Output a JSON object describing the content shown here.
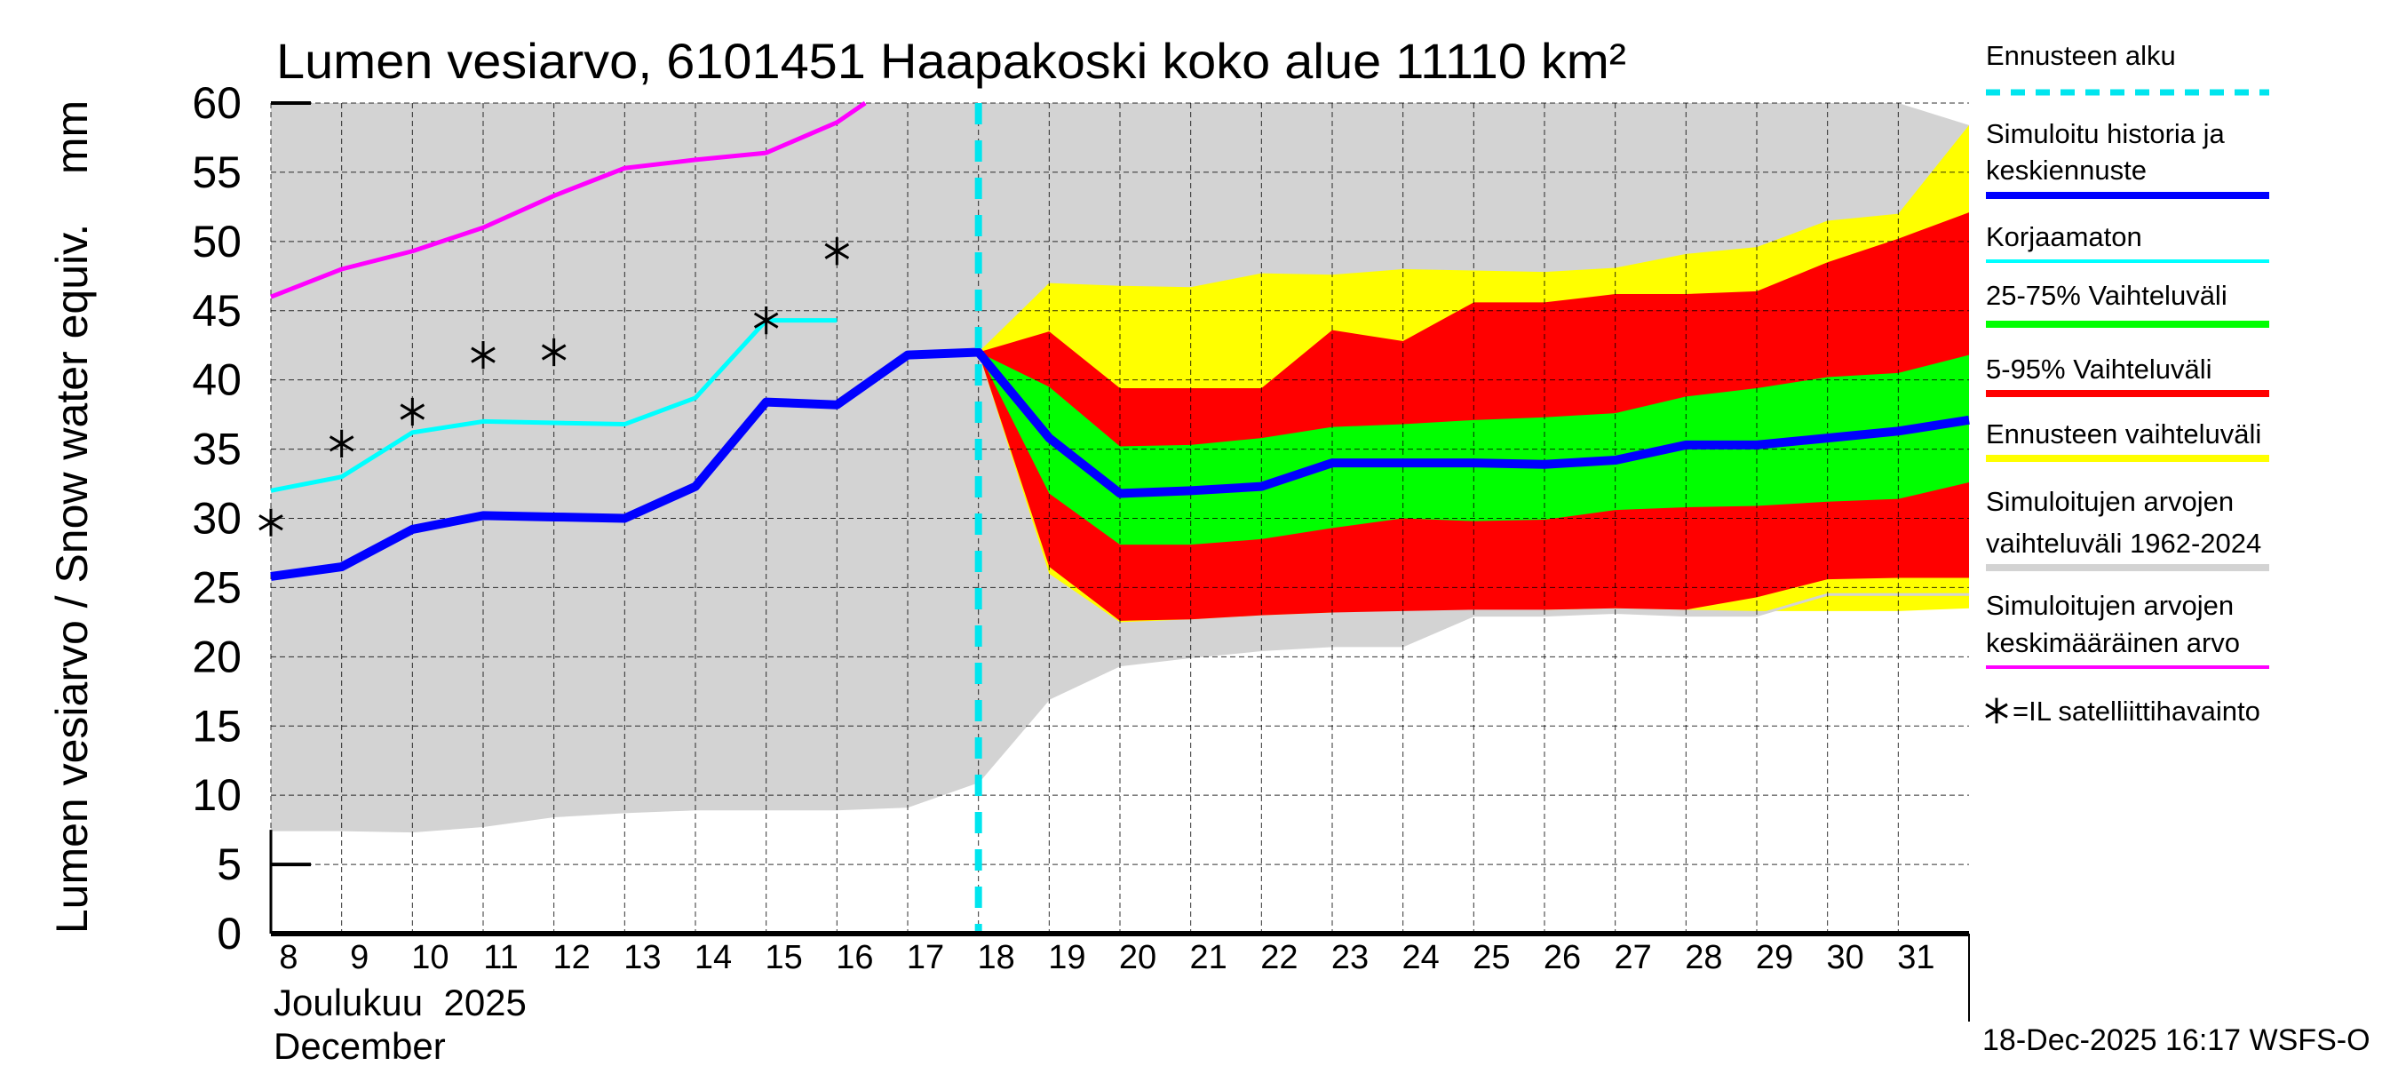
{
  "chart_data": {
    "type": "area",
    "title": "Lumen vesiarvo, 6101451 Haapakoski koko alue 11110 km²",
    "ylabel": "Lumen vesiarvo / Snow water equiv.    mm",
    "xlabel_line1": "Joulukuu  2025",
    "xlabel_line2": "December",
    "timestamp": "18-Dec-2025 16:17 WSFS-O",
    "xlim": [
      8,
      32
    ],
    "ylim": [
      0,
      60
    ],
    "yticks": [
      0,
      5,
      10,
      15,
      20,
      25,
      30,
      35,
      40,
      45,
      50,
      55,
      60
    ],
    "xticks": [
      8,
      9,
      10,
      11,
      12,
      13,
      14,
      15,
      16,
      17,
      18,
      19,
      20,
      21,
      22,
      23,
      24,
      25,
      26,
      27,
      28,
      29,
      30,
      31
    ],
    "grid": true,
    "forecast_start": 18,
    "legend_position": "right",
    "legend": [
      {
        "lines": [
          "Ennusteen alku"
        ],
        "color": "#00e5ee",
        "style": "dashed"
      },
      {
        "lines": [
          "Simuloitu historia ja",
          "keskiennuste"
        ],
        "color": "#0000ff",
        "style": "thick"
      },
      {
        "lines": [
          "Korjaamaton"
        ],
        "color": "#00ffff",
        "style": "line"
      },
      {
        "lines": [
          "25-75% Vaihteluväli"
        ],
        "color": "#00ff00",
        "style": "thick"
      },
      {
        "lines": [
          "5-95% Vaihteluväli"
        ],
        "color": "#ff0000",
        "style": "thick"
      },
      {
        "lines": [
          "Ennusteen vaihteluväli"
        ],
        "color": "#ffff00",
        "style": "thick"
      },
      {
        "lines": [
          "Simuloitujen arvojen",
          "vaihteluväli 1962-2024"
        ],
        "color": "#d3d3d3",
        "style": "thick"
      },
      {
        "lines": [
          "Simuloitujen arvojen",
          "keskimääräinen arvo"
        ],
        "color": "#ff00ff",
        "style": "line"
      },
      {
        "lines": [
          "=IL satelliittihavainto"
        ],
        "color": "#000000",
        "style": "star"
      }
    ],
    "series": {
      "hist_range": {
        "x": [
          8,
          9,
          10,
          11,
          12,
          13,
          14,
          15,
          16,
          17,
          18,
          19,
          20,
          21,
          22,
          23,
          24,
          25,
          26,
          27,
          28,
          29,
          30,
          31,
          32
        ],
        "upper": [
          60,
          60,
          60,
          60,
          60,
          60,
          60,
          60,
          60,
          60,
          60,
          60,
          60,
          60,
          60,
          60,
          60,
          60,
          60,
          60,
          60,
          60,
          60,
          60,
          58.4
        ],
        "lower": [
          7.5,
          7.5,
          7.4,
          7.8,
          8.5,
          8.8,
          9,
          9,
          9,
          9.2,
          11,
          17,
          19.4,
          20,
          20.5,
          20.8,
          20.8,
          23,
          23,
          23.2,
          23,
          23,
          24.5,
          24.5,
          24.5
        ]
      },
      "forecast_range": {
        "x": [
          18,
          19,
          20,
          21,
          22,
          23,
          24,
          25,
          26,
          27,
          28,
          29,
          30,
          31,
          32
        ],
        "upper": [
          42,
          47,
          46.8,
          46.7,
          47.7,
          47.6,
          48,
          47.9,
          47.8,
          48.1,
          49.1,
          49.6,
          51.5,
          52,
          58.4
        ],
        "lower": [
          42,
          26,
          22.5,
          22.7,
          23,
          23.2,
          23.7,
          24.2,
          23.4,
          23.5,
          23.4,
          23.3,
          23.3,
          23.3,
          23.5
        ]
      },
      "p5_95": {
        "x": [
          18,
          19,
          20,
          21,
          22,
          23,
          24,
          25,
          26,
          27,
          28,
          29,
          30,
          31,
          32
        ],
        "upper": [
          42,
          43.5,
          39.4,
          39.4,
          39.4,
          43.6,
          42.8,
          45.6,
          45.6,
          46.2,
          46.2,
          46.4,
          48.5,
          50.2,
          52.1
        ],
        "lower": [
          42,
          26.5,
          22.6,
          22.7,
          23,
          23.2,
          23.3,
          23.4,
          23.4,
          23.5,
          23.4,
          24.3,
          25.6,
          25.7,
          25.7
        ]
      },
      "p25_75": {
        "x": [
          18,
          19,
          20,
          21,
          22,
          23,
          24,
          25,
          26,
          27,
          28,
          29,
          30,
          31,
          32
        ],
        "upper": [
          42,
          39.5,
          35.2,
          35.3,
          35.8,
          36.6,
          36.8,
          37.1,
          37.3,
          37.6,
          38.8,
          39.4,
          40.2,
          40.5,
          41.8
        ],
        "lower": [
          42,
          31.8,
          28.1,
          28.1,
          28.5,
          29.3,
          30,
          29.8,
          29.9,
          30.6,
          30.8,
          30.9,
          31.2,
          31.4,
          32.6
        ]
      },
      "simulated": {
        "x": [
          8,
          9,
          10,
          11,
          12,
          13,
          14,
          15,
          16,
          17,
          18,
          19,
          20,
          21,
          22,
          23,
          24,
          25,
          26,
          27,
          28,
          29,
          30,
          31,
          32
        ],
        "y": [
          25.8,
          26.5,
          29.2,
          30.2,
          30.1,
          30,
          32.3,
          38.4,
          38.2,
          41.8,
          42,
          35.8,
          31.8,
          32,
          32.3,
          34,
          34,
          34,
          33.9,
          34.2,
          35.3,
          35.3,
          35.8,
          36.3,
          37.1
        ]
      },
      "uncorrected": {
        "x": [
          8,
          9,
          10,
          11,
          12,
          13,
          14,
          15,
          16
        ],
        "y": [
          32,
          33,
          36.2,
          37,
          36.9,
          36.8,
          38.7,
          44.3,
          44.3
        ]
      },
      "hist_mean": {
        "x": [
          8,
          9,
          10,
          11,
          12,
          13,
          14,
          15,
          16,
          16.4
        ],
        "y": [
          46,
          48,
          49.3,
          51,
          53.3,
          55.3,
          55.9,
          56.4,
          58.6,
          60
        ]
      },
      "satellite": {
        "x": [
          8,
          9,
          10,
          11,
          12,
          15,
          16
        ],
        "y": [
          29.7,
          35.4,
          37.7,
          41.8,
          42,
          44.3,
          49.3
        ]
      }
    }
  }
}
